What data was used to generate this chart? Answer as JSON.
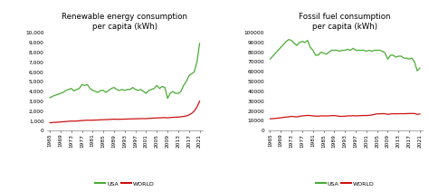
{
  "years": [
    1965,
    1966,
    1967,
    1968,
    1969,
    1970,
    1971,
    1972,
    1973,
    1974,
    1975,
    1976,
    1977,
    1978,
    1979,
    1980,
    1981,
    1982,
    1983,
    1984,
    1985,
    1986,
    1987,
    1988,
    1989,
    1990,
    1991,
    1992,
    1993,
    1994,
    1995,
    1996,
    1997,
    1998,
    1999,
    2000,
    2001,
    2002,
    2003,
    2004,
    2005,
    2006,
    2007,
    2008,
    2009,
    2010,
    2011,
    2012,
    2013,
    2014,
    2015,
    2016,
    2017,
    2018,
    2019,
    2020,
    2021
  ],
  "renew_usa": [
    3350,
    3500,
    3600,
    3700,
    3800,
    3900,
    4100,
    4200,
    4300,
    4050,
    4200,
    4300,
    4700,
    4600,
    4700,
    4300,
    4100,
    4000,
    3900,
    4100,
    4100,
    3900,
    4100,
    4300,
    4400,
    4200,
    4100,
    4200,
    4100,
    4200,
    4200,
    4400,
    4200,
    4100,
    4200,
    4000,
    3800,
    4100,
    4200,
    4300,
    4600,
    4300,
    4500,
    4400,
    3300,
    3800,
    4000,
    3800,
    3800,
    4000,
    4600,
    5000,
    5600,
    5800,
    6000,
    7000,
    8900
  ],
  "renew_world": [
    800,
    820,
    840,
    860,
    880,
    900,
    920,
    950,
    970,
    960,
    980,
    1000,
    1020,
    1040,
    1060,
    1050,
    1060,
    1070,
    1080,
    1100,
    1110,
    1120,
    1130,
    1150,
    1160,
    1150,
    1150,
    1160,
    1170,
    1180,
    1190,
    1200,
    1200,
    1210,
    1220,
    1220,
    1220,
    1240,
    1260,
    1280,
    1290,
    1300,
    1310,
    1320,
    1300,
    1330,
    1350,
    1360,
    1380,
    1400,
    1440,
    1490,
    1600,
    1750,
    2000,
    2400,
    3000
  ],
  "fossil_usa": [
    73000,
    76000,
    79000,
    82000,
    85000,
    88000,
    91000,
    93000,
    92000,
    89000,
    87000,
    90000,
    91000,
    90000,
    92000,
    85000,
    82000,
    77000,
    77000,
    80000,
    79000,
    78000,
    80000,
    82000,
    82000,
    82000,
    81000,
    82000,
    82000,
    83000,
    82000,
    84000,
    82000,
    82000,
    82000,
    82000,
    81000,
    82000,
    81000,
    82000,
    82000,
    82000,
    81000,
    79000,
    73000,
    77000,
    77000,
    75000,
    76000,
    76000,
    74000,
    74000,
    73000,
    74000,
    70000,
    61000,
    64000
  ],
  "fossil_world": [
    12000,
    12200,
    12400,
    12700,
    13000,
    13500,
    13800,
    14000,
    14500,
    14200,
    14000,
    14500,
    15000,
    15200,
    15500,
    15300,
    15000,
    14800,
    14700,
    15000,
    15000,
    14900,
    15000,
    15300,
    15300,
    15000,
    14500,
    14500,
    14700,
    15000,
    15000,
    15200,
    15000,
    15100,
    15200,
    15400,
    15300,
    15600,
    15900,
    16500,
    17000,
    17100,
    17300,
    17200,
    16500,
    17000,
    17200,
    17100,
    17200,
    17200,
    17200,
    17300,
    17400,
    17500,
    17400,
    16500,
    17000
  ],
  "renew_ylim": [
    0,
    10000
  ],
  "renew_yticks": [
    0,
    1000,
    2000,
    3000,
    4000,
    5000,
    6000,
    7000,
    8000,
    9000,
    10000
  ],
  "renew_yticklabels": [
    "0",
    "1,000",
    "2,000",
    "3,000",
    "4,000",
    "5,000",
    "6,000",
    "7,000",
    "8,000",
    "9,000",
    "10,000"
  ],
  "fossil_ylim": [
    0,
    100000
  ],
  "fossil_yticks": [
    0,
    10000,
    20000,
    30000,
    40000,
    50000,
    60000,
    70000,
    80000,
    90000,
    100000
  ],
  "fossil_yticklabels": [
    "0",
    "10000",
    "20000",
    "30000",
    "40000",
    "50000",
    "60000",
    "70000",
    "80000",
    "90000",
    "100000"
  ],
  "xticks": [
    1965,
    1969,
    1973,
    1977,
    1981,
    1985,
    1989,
    1993,
    1997,
    2001,
    2005,
    2009,
    2013,
    2017,
    2021
  ],
  "title1": "Renewable energy consumption\nper capita (kWh)",
  "title2": "Fossil fuel consumption\nper capita (kWh)",
  "color_usa": "#4aaa35",
  "color_world": "#cc1111",
  "legend_usa": "USA",
  "legend_world": "WORLD",
  "bg_color": "#ffffff"
}
